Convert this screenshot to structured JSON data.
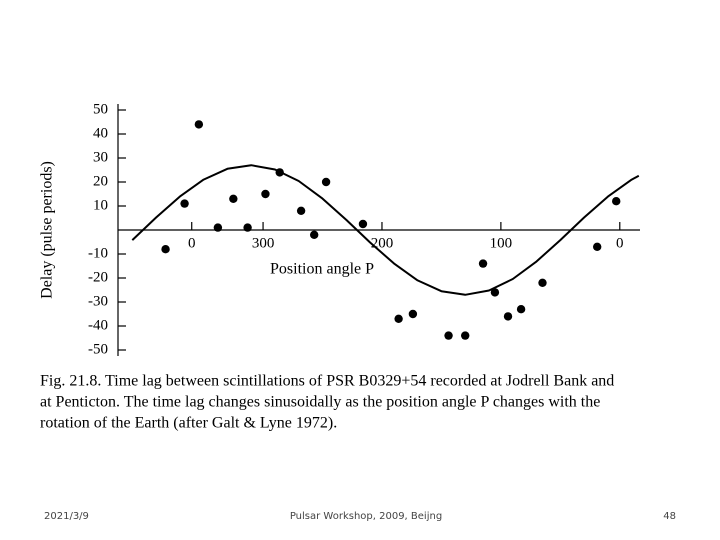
{
  "chart_data": {
    "type": "scatter",
    "x_label": "Position angle P",
    "y_label": "Delay (pulse periods)",
    "caption": [
      "Fig. 21.8. Time lag between scintillations of PSR B0329+54 recorded at Jodrell Bank and",
      "at Penticton. The time lag changes sinusoidally as the position angle P changes with the",
      "rotation of the Earth (after Galt & Lyne 1972)."
    ],
    "xlim": [
      422,
      -17
    ],
    "xticks": [
      {
        "value": 360,
        "label": "0"
      },
      300,
      200,
      100,
      0
    ],
    "ylim": [
      -50,
      50
    ],
    "yticks": [
      50,
      40,
      30,
      20,
      10,
      -10,
      -20,
      -30,
      -40,
      -50
    ],
    "series": [
      {
        "type": "scatter",
        "color": "#000000",
        "x": [
          382,
          366,
          354,
          338,
          325,
          313,
          298,
          286,
          268,
          257,
          247,
          216,
          186,
          174,
          144,
          130,
          115,
          105,
          94,
          83,
          65,
          19,
          3
        ],
        "values": [
          -8,
          11,
          44,
          1,
          13,
          1,
          15,
          24,
          8,
          -2,
          20,
          2.5,
          -37,
          -35,
          -44,
          -44,
          -14,
          -26,
          -36,
          -33,
          -22,
          -7,
          12
        ]
      },
      {
        "type": "line",
        "color": "#000000",
        "x": [
          410,
          390,
          370,
          350,
          330,
          310,
          290,
          270,
          250,
          230,
          210,
          190,
          170,
          150,
          130,
          110,
          90,
          70,
          50,
          30,
          10,
          -10,
          -16
        ],
        "values": [
          -4.2,
          5.2,
          13.9,
          21.0,
          25.5,
          27.0,
          25.2,
          20.4,
          13.1,
          4.2,
          -5.2,
          -13.9,
          -21.0,
          -25.5,
          -27.0,
          -25.2,
          -20.4,
          -13.1,
          -4.2,
          5.2,
          13.9,
          21.0,
          22.6
        ]
      }
    ]
  },
  "footer": {
    "date": "2021/3/9",
    "center": "Pulsar Workshop, 2009, Beijng",
    "page": "48"
  }
}
